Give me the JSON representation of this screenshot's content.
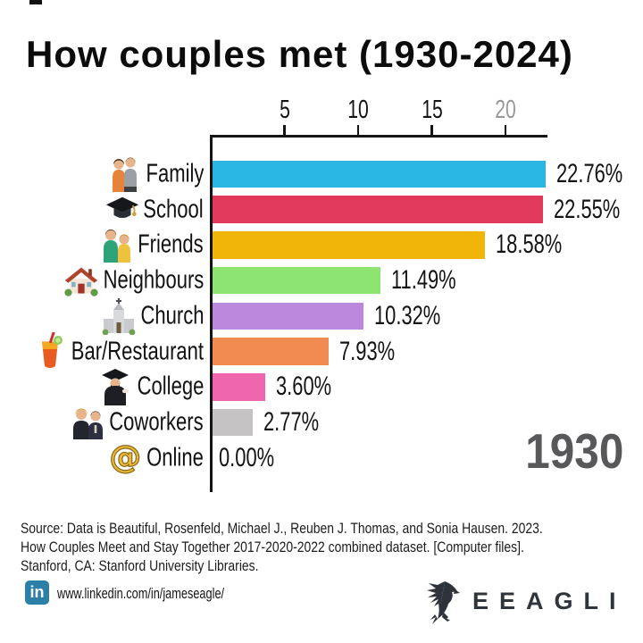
{
  "title": "How couples met (1930-2024)",
  "year_label": "1930",
  "chart_data": {
    "type": "bar",
    "orientation": "horizontal",
    "title": "How couples met (1930-2024)",
    "frame_year": "1930",
    "categories": [
      "Family",
      "School",
      "Friends",
      "Neighbours",
      "Church",
      "Bar/Restaurant",
      "College",
      "Coworkers",
      "Online"
    ],
    "values": [
      22.76,
      22.55,
      18.58,
      11.49,
      10.32,
      7.93,
      3.6,
      2.77,
      0.0
    ],
    "value_labels": [
      "22.76%",
      "22.55%",
      "18.58%",
      "11.49%",
      "10.32%",
      "7.93%",
      "3.60%",
      "2.77%",
      "0.00%"
    ],
    "bar_colors": [
      "#29b6e3",
      "#e23a5c",
      "#f1b409",
      "#8ee470",
      "#bc88de",
      "#f28b52",
      "#ef66ae",
      "#c4c2c2",
      "#c4c2c2"
    ],
    "icons": [
      "family-couple-icon",
      "graduation-cap-icon",
      "friends-icon",
      "house-icon",
      "church-icon",
      "cocktail-icon",
      "graduate-icon",
      "coworkers-icon",
      "at-sign-icon"
    ],
    "x_ticks": [
      "5",
      "10",
      "15",
      "20"
    ],
    "x_tick_values": [
      5,
      10,
      15,
      20
    ],
    "xlim": [
      0,
      22.9
    ],
    "grid": false,
    "legend": false,
    "axis_color": "#141414",
    "muted_tick_color": "#999999"
  },
  "source_lines": [
    "Source: Data is Beautiful, Rosenfeld, Michael J., Reuben J. Thomas, and Sonia Hausen. 2023.",
    "How Couples Meet and Stay Together 2017-2020-2022 combined dataset. [Computer files].",
    "Stanford, CA: Stanford University Libraries."
  ],
  "footer": {
    "linkedin_badge": "in",
    "linkedin_url": "www.linkedin.com/in/jameseagle/",
    "brand": "EEAGLI"
  }
}
